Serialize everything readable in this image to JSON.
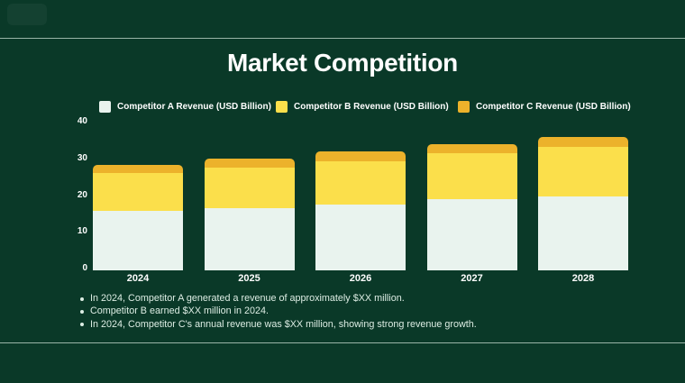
{
  "title": "Market Competition",
  "colors": {
    "background": "#0A3928",
    "divider": "#C9DED2",
    "title_text": "#FFFFFF",
    "legend_text": "#FFFFFF",
    "axis_text": "#FFFFFF",
    "bullet_text": "#DDEDE4",
    "series_a": "#E9F3EE",
    "series_b": "#FBDF4B",
    "series_c": "#ECB22B"
  },
  "legend": [
    {
      "label": "Competitor A Revenue (USD Billion)",
      "color": "#E9F3EE"
    },
    {
      "label": "Competitor B Revenue (USD Billion)",
      "color": "#FBDF4B"
    },
    {
      "label": "Competitor C Revenue (USD Billion)",
      "color": "#ECB22B"
    }
  ],
  "chart_data": {
    "type": "bar",
    "stacked": true,
    "title": "Market Competition",
    "xlabel": "",
    "ylabel": "",
    "categories": [
      "2024",
      "2025",
      "2026",
      "2027",
      "2028"
    ],
    "series": [
      {
        "name": "Competitor A Revenue (USD Billion)",
        "color": "#E9F3EE",
        "values": [
          16.3,
          17.0,
          17.8,
          19.3,
          20.2
        ]
      },
      {
        "name": "Competitor B Revenue (USD Billion)",
        "color": "#FBDF4B",
        "values": [
          10.2,
          11.0,
          12.0,
          12.5,
          13.4
        ]
      },
      {
        "name": "Competitor C Revenue (USD Billion)",
        "color": "#ECB22B",
        "values": [
          2.2,
          2.4,
          2.6,
          2.6,
          2.7
        ]
      }
    ],
    "totals": [
      28.7,
      30.4,
      32.4,
      34.4,
      36.3
    ],
    "ylim": [
      0,
      40
    ],
    "yticks": [
      0,
      10,
      20,
      30,
      40
    ],
    "grid": false,
    "legend_position": "top"
  },
  "bullets": [
    "In 2024, Competitor A generated a revenue of approximately $XX million.",
    "Competitor B earned $XX million in 2024.",
    "In 2024, Competitor C's annual revenue was $XX million, showing strong revenue growth."
  ]
}
